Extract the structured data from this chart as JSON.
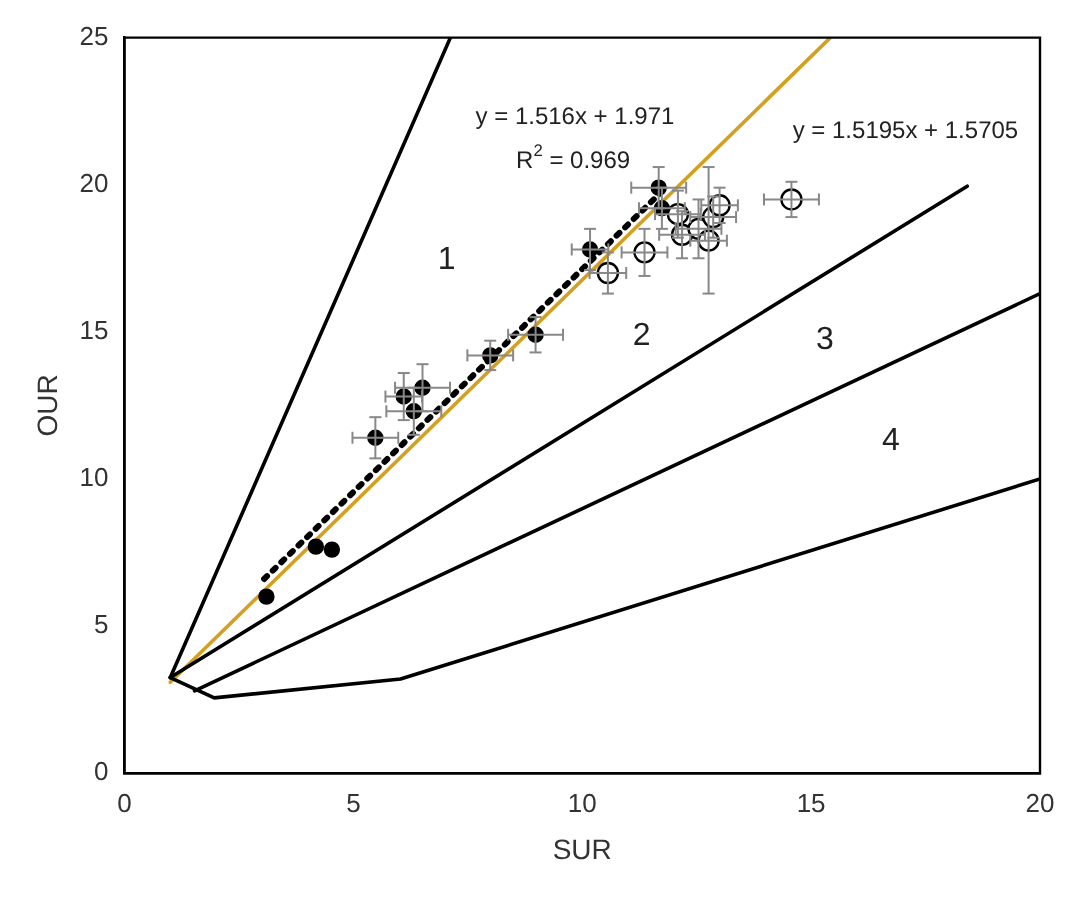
{
  "chart_data": {
    "type": "scatter",
    "xlabel": "SUR",
    "ylabel": "OUR",
    "xlim": [
      0,
      20
    ],
    "ylim": [
      0,
      25
    ],
    "xticks": [
      0,
      5,
      10,
      15,
      20
    ],
    "yticks": [
      0,
      5,
      10,
      15,
      20,
      25
    ],
    "grid": false,
    "legend": false,
    "series": [
      {
        "marker": "circle",
        "color": "#000000",
        "x": [
          3.1,
          4.18,
          4.53,
          5.48,
          6.1,
          6.51,
          6.32,
          7.99,
          8.98,
          10.17,
          11.67,
          11.74
        ],
        "values": [
          6.0,
          7.7,
          7.6,
          11.4,
          12.8,
          13.1,
          12.3,
          14.2,
          14.9,
          17.8,
          19.9,
          19.2
        ],
        "errors": [
          null,
          null,
          null,
          0.7,
          0.8,
          0.8,
          0.8,
          0.5,
          0.6,
          0.7,
          0.7,
          0.7
        ],
        "xerrors": [
          null,
          null,
          null,
          0.5,
          0.4,
          0.6,
          0.6,
          0.5,
          0.6,
          0.4,
          0.6,
          0.5
        ]
      },
      {
        "marker": "circle",
        "color": "#000000",
        "x": [
          10.56,
          11.36,
          12.09,
          12.18,
          12.54,
          12.76,
          12.86,
          13.0,
          14.57
        ],
        "values": [
          17.0,
          17.7,
          19.0,
          18.3,
          18.5,
          18.1,
          18.9,
          19.3,
          19.5
        ],
        "errors": [
          0.7,
          0.8,
          0.8,
          0.8,
          1.0,
          [
            16.3,
            20.6
          ],
          0.7,
          0.6,
          0.6
        ],
        "xerrors": [
          0.4,
          0.5,
          0.5,
          0.5,
          0.5,
          0.4,
          0.5,
          0.4,
          0.6
        ]
      },
      {
        "type": "line",
        "color": "#000000",
        "line_style": "solid",
        "x": [
          1.0,
          7.12
        ],
        "values": [
          3.25,
          25
        ]
      },
      {
        "type": "line",
        "color": "#000000",
        "line_style": "solid",
        "x": [
          1.0,
          18.41
        ],
        "values": [
          3.25,
          19.95
        ]
      },
      {
        "type": "line",
        "color": "#000000",
        "line_style": "solid",
        "x": [
          1.53,
          20
        ],
        "values": [
          2.8,
          16.3
        ]
      },
      {
        "type": "line",
        "color": "#000000",
        "line_style": "solid",
        "x": [
          1.0,
          1.96,
          6.03,
          20
        ],
        "values": [
          3.25,
          2.56,
          3.2,
          10.0
        ]
      },
      {
        "type": "line",
        "color": "#d4a020",
        "line_style": "solid",
        "x": [
          1.0,
          15.42
        ],
        "values": [
          3.09,
          25
        ]
      },
      {
        "type": "line",
        "color": "#000000",
        "line_style": "dotted",
        "x": [
          3.05,
          11.8
        ],
        "values": [
          6.6,
          19.86
        ]
      }
    ],
    "annotations": [
      "y = 1.516x + 1.971",
      "R$^{2}$ = 0.969",
      "y = 1.5195x + 1.5705",
      "1",
      "2",
      "3",
      "4"
    ]
  }
}
